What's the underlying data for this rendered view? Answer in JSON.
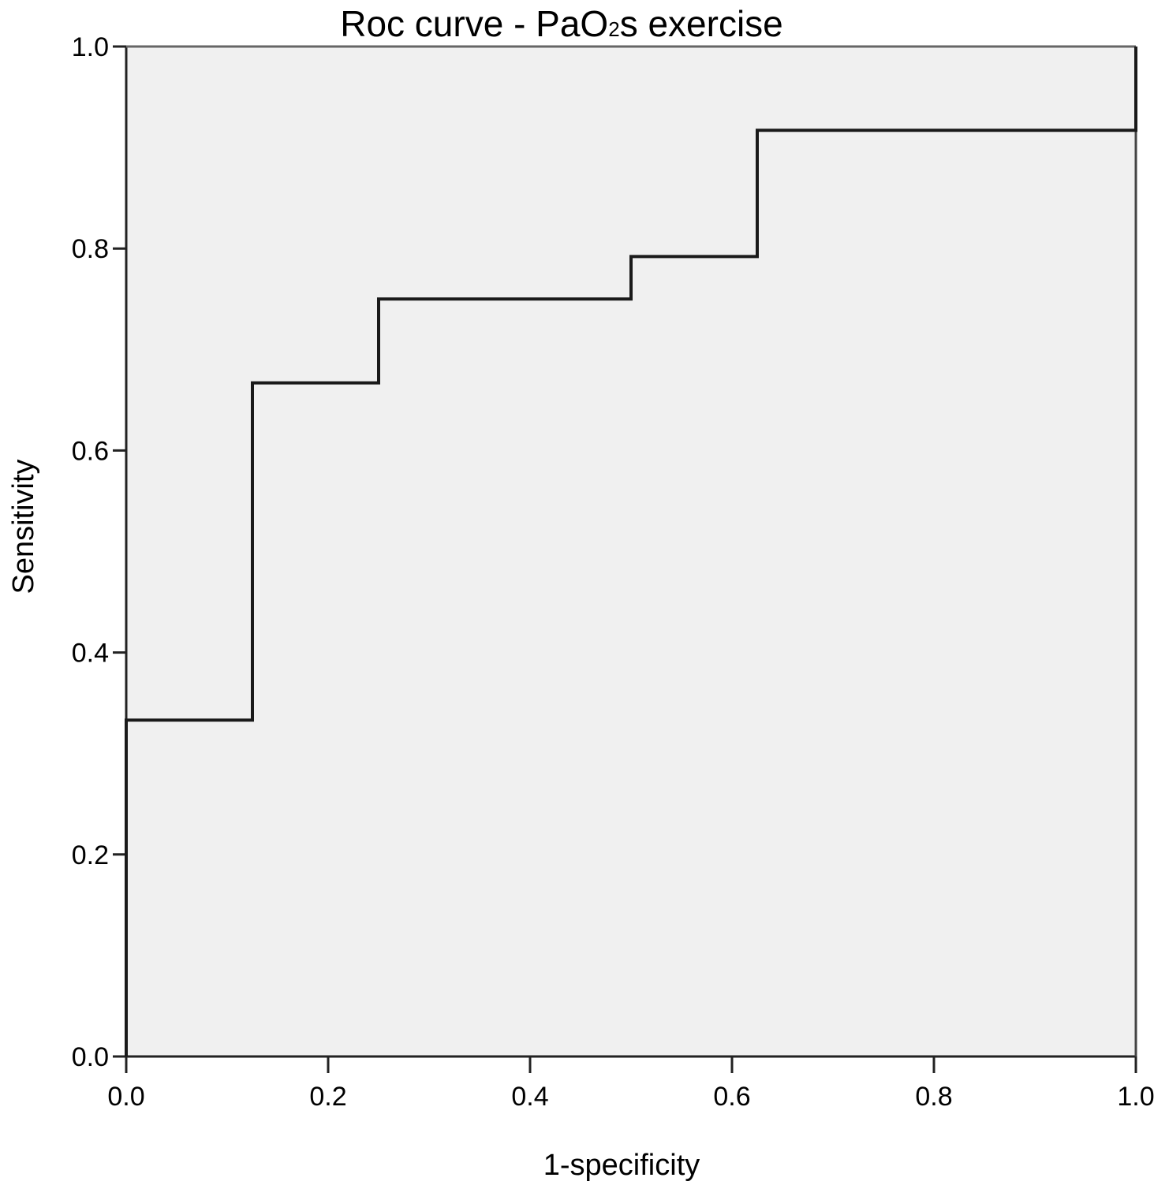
{
  "chart_data": {
    "type": "line",
    "step": true,
    "title": "Roc curve - PaO₂s exercise",
    "title_parts": {
      "prefix": "Roc curve - PaO",
      "subscript": "2",
      "suffix": "s exercise"
    },
    "xlabel": "1-specificity",
    "ylabel": "Sensitivity",
    "xlim": [
      0,
      1
    ],
    "ylim": [
      0,
      1
    ],
    "x_ticks": [
      "0.0",
      "0.2",
      "0.4",
      "0.6",
      "0.8",
      "1.0"
    ],
    "y_ticks": [
      "0.0",
      "0.2",
      "0.4",
      "0.6",
      "0.8",
      "1.0"
    ],
    "grid": false,
    "legend": null,
    "series": [
      {
        "name": "PaO2s exercise",
        "x": [
          0.0,
          0.0,
          0.125,
          0.125,
          0.25,
          0.25,
          0.5,
          0.5,
          0.625,
          0.625,
          1.0,
          1.0
        ],
        "y": [
          0.0,
          0.333,
          0.333,
          0.667,
          0.667,
          0.75,
          0.75,
          0.792,
          0.792,
          0.917,
          0.917,
          1.0
        ]
      }
    ]
  },
  "colors": {
    "plot_background": "#f0f0f0",
    "line": "#1a1a1a",
    "axis": "#222222"
  }
}
